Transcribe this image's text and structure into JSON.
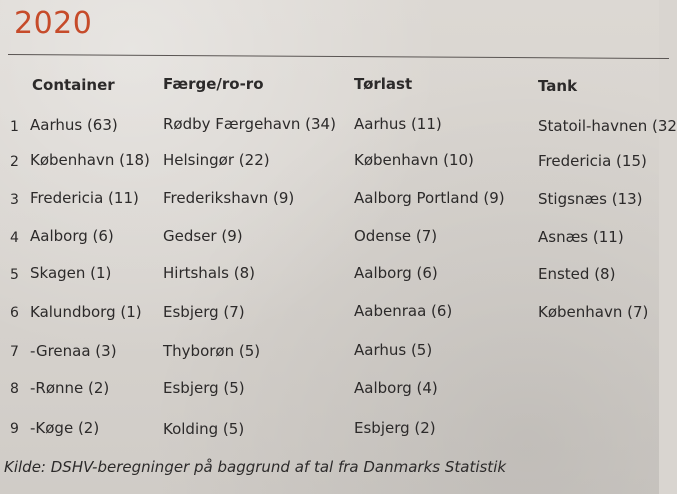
{
  "header": {
    "year": "2020"
  },
  "table": {
    "columns": [
      "Container",
      "Færge/ro-ro",
      "Tørlast",
      "Tank"
    ],
    "rows": [
      {
        "rank": "1",
        "cells": [
          "Aarhus (63)",
          "Rødby Færgehavn (34)",
          "Aarhus (11)",
          "Statoil-havnen (32"
        ]
      },
      {
        "rank": "2",
        "cells": [
          "København (18)",
          "Helsingør (22)",
          "København (10)",
          "Fredericia (15)"
        ]
      },
      {
        "rank": "3",
        "cells": [
          "Fredericia (11)",
          "Frederikshavn (9)",
          "Aalborg Portland (9)",
          "Stigsnæs (13)"
        ]
      },
      {
        "rank": "4",
        "cells": [
          "Aalborg (6)",
          "Gedser (9)",
          "Odense (7)",
          "Asnæs (11)"
        ]
      },
      {
        "rank": "5",
        "cells": [
          "Skagen (1)",
          "Hirtshals (8)",
          "Aalborg (6)",
          "Ensted (8)"
        ]
      },
      {
        "rank": "6",
        "cells": [
          "Kalundborg (1)",
          "Esbjerg (7)",
          "Aabenraa (6)",
          "København (7)"
        ]
      },
      {
        "rank": "7",
        "cells": [
          "-Grenaa (3)",
          "Thyborøn (5)",
          "Aarhus (5)",
          ""
        ]
      },
      {
        "rank": "8",
        "cells": [
          "-Rønne (2)",
          "Esbjerg (5)",
          "Aalborg (4)",
          ""
        ]
      },
      {
        "rank": "9",
        "cells": [
          "-Køge (2)",
          "Kolding (5)",
          "Esbjerg (2)",
          ""
        ]
      }
    ]
  },
  "footer": {
    "source": "Kilde: DSHV-beregninger på baggrund af tal fra Danmarks Statistik"
  }
}
